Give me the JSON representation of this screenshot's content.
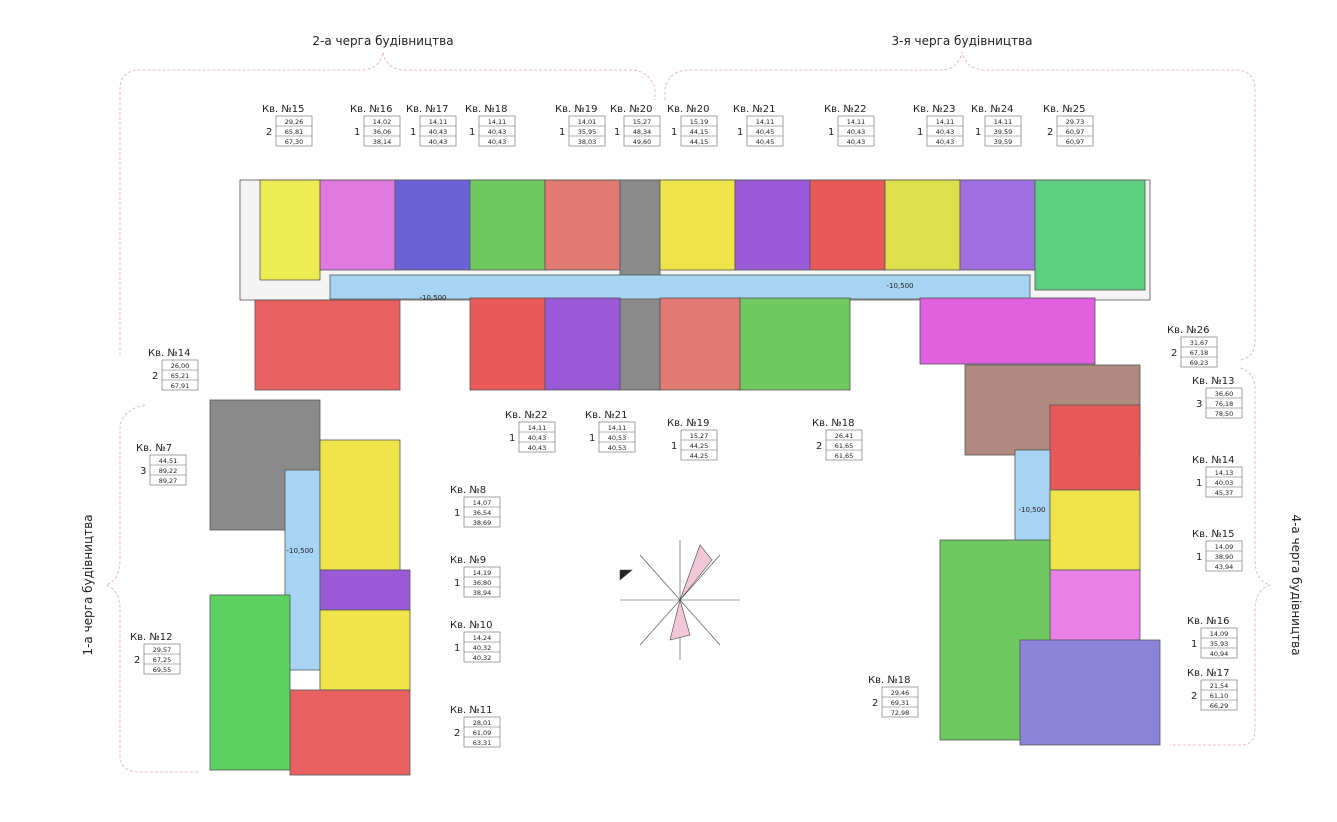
{
  "queues": [
    {
      "label": "2-а черга будівництва"
    },
    {
      "label": "3-я черга будівництва"
    },
    {
      "label": "1-а черга будівництва"
    },
    {
      "label": "4-а черга будівництва"
    }
  ],
  "levels": [
    "-10,500",
    "-10,500",
    "-10,500",
    "-10,500"
  ],
  "apartments": [
    {
      "name": "Кв. №15",
      "rooms": 2,
      "areas": [
        "29,26",
        "65,81",
        "67,30"
      ]
    },
    {
      "name": "Кв. №16",
      "rooms": 1,
      "areas": [
        "14,02",
        "36,06",
        "38,14"
      ]
    },
    {
      "name": "Кв. №17",
      "rooms": 1,
      "areas": [
        "14,11",
        "40,43",
        "40,43"
      ]
    },
    {
      "name": "Кв. №18",
      "rooms": 1,
      "areas": [
        "14,11",
        "40,43",
        "40,43"
      ]
    },
    {
      "name": "Кв. №19",
      "rooms": 1,
      "areas": [
        "14,01",
        "35,95",
        "38,03"
      ]
    },
    {
      "name": "Кв. №20",
      "rooms": 1,
      "areas": [
        "15,27",
        "48,34",
        "49,60"
      ]
    },
    {
      "name": "Кв. №20",
      "rooms": 1,
      "areas": [
        "15,19",
        "44,15",
        "44,15"
      ]
    },
    {
      "name": "Кв. №21",
      "rooms": 1,
      "areas": [
        "14,11",
        "40,45",
        "40,45"
      ]
    },
    {
      "name": "Кв. №22",
      "rooms": 1,
      "areas": [
        "14,11",
        "40,43",
        "40,43"
      ]
    },
    {
      "name": "Кв. №23",
      "rooms": 1,
      "areas": [
        "14,11",
        "40,43",
        "40,43"
      ]
    },
    {
      "name": "Кв. №24",
      "rooms": 1,
      "areas": [
        "14,11",
        "39,59",
        "39,59"
      ]
    },
    {
      "name": "Кв. №25",
      "rooms": 2,
      "areas": [
        "29,73",
        "60,97",
        "60,97"
      ]
    },
    {
      "name": "Кв. №26",
      "rooms": 2,
      "areas": [
        "31,67",
        "67,18",
        "69,23"
      ]
    },
    {
      "name": "Кв. №13",
      "rooms": 3,
      "areas": [
        "36,60",
        "76,18",
        "78,50"
      ]
    },
    {
      "name": "Кв. №14",
      "rooms": 1,
      "areas": [
        "14,13",
        "40,03",
        "45,37"
      ]
    },
    {
      "name": "Кв. №15",
      "rooms": 1,
      "areas": [
        "14,09",
        "38,90",
        "43,94"
      ]
    },
    {
      "name": "Кв. №16",
      "rooms": 1,
      "areas": [
        "14,09",
        "35,93",
        "40,94"
      ]
    },
    {
      "name": "Кв. №17",
      "rooms": 2,
      "areas": [
        "21,54",
        "61,10",
        "66,29"
      ]
    },
    {
      "name": "Кв. №18",
      "rooms": 2,
      "areas": [
        "29,46",
        "69,31",
        "72,98"
      ]
    },
    {
      "name": "Кв. №22",
      "rooms": 1,
      "areas": [
        "14,11",
        "40,43",
        "40,43"
      ]
    },
    {
      "name": "Кв. №21",
      "rooms": 1,
      "areas": [
        "14,11",
        "40,53",
        "40,53"
      ]
    },
    {
      "name": "Кв. №19",
      "rooms": 1,
      "areas": [
        "15,27",
        "44,25",
        "44,25"
      ]
    },
    {
      "name": "Кв. №18",
      "rooms": 2,
      "areas": [
        "26,41",
        "61,65",
        "61,65"
      ]
    },
    {
      "name": "Кв. №14",
      "rooms": 2,
      "areas": [
        "26,00",
        "65,21",
        "67,91"
      ]
    },
    {
      "name": "Кв. №7",
      "rooms": 3,
      "areas": [
        "44,51",
        "89,22",
        "89,27"
      ]
    },
    {
      "name": "Кв. №8",
      "rooms": 1,
      "areas": [
        "14,07",
        "36,54",
        "38,69"
      ]
    },
    {
      "name": "Кв. №9",
      "rooms": 1,
      "areas": [
        "14,19",
        "36,80",
        "38,94"
      ]
    },
    {
      "name": "Кв. №10",
      "rooms": 1,
      "areas": [
        "14,24",
        "40,32",
        "40,32"
      ]
    },
    {
      "name": "Кв. №11",
      "rooms": 2,
      "areas": [
        "28,01",
        "61,09",
        "63,31"
      ]
    },
    {
      "name": "Кв. №12",
      "rooms": 2,
      "areas": [
        "29,57",
        "67,25",
        "69,55"
      ]
    }
  ]
}
